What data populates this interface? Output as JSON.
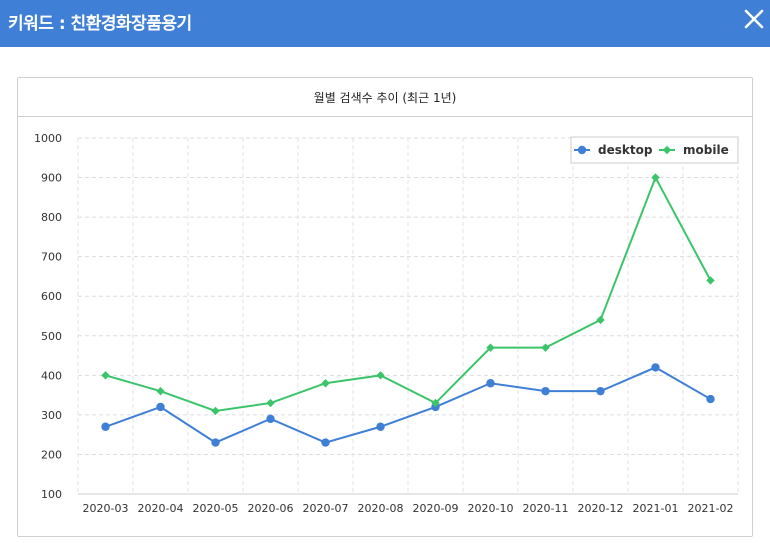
{
  "window": {
    "title": "키워드 : 친환경화장품용기",
    "close_icon": "close-icon",
    "header_color": "#3f7fd6"
  },
  "panel": {
    "title": "월별 검색수 추이 (최근 1년)"
  },
  "chart_data": {
    "type": "line",
    "title": "월별 검색수 추이 (최근 1년)",
    "xlabel": "",
    "ylabel": "",
    "categories": [
      "2020-03",
      "2020-04",
      "2020-05",
      "2020-06",
      "2020-07",
      "2020-08",
      "2020-09",
      "2020-10",
      "2020-11",
      "2020-12",
      "2021-01",
      "2021-02"
    ],
    "ylim": [
      100,
      1000
    ],
    "yticks": [
      100,
      200,
      300,
      400,
      500,
      600,
      700,
      800,
      900,
      1000
    ],
    "grid": "dashed",
    "legend_position": "top-right",
    "series": [
      {
        "name": "desktop",
        "color": "#3f7fd6",
        "marker": "circle",
        "values": [
          270,
          320,
          230,
          290,
          230,
          270,
          320,
          380,
          360,
          360,
          420,
          340
        ]
      },
      {
        "name": "mobile",
        "color": "#3cc46a",
        "marker": "diamond",
        "values": [
          400,
          360,
          310,
          330,
          380,
          400,
          330,
          470,
          470,
          540,
          900,
          640
        ]
      }
    ]
  }
}
